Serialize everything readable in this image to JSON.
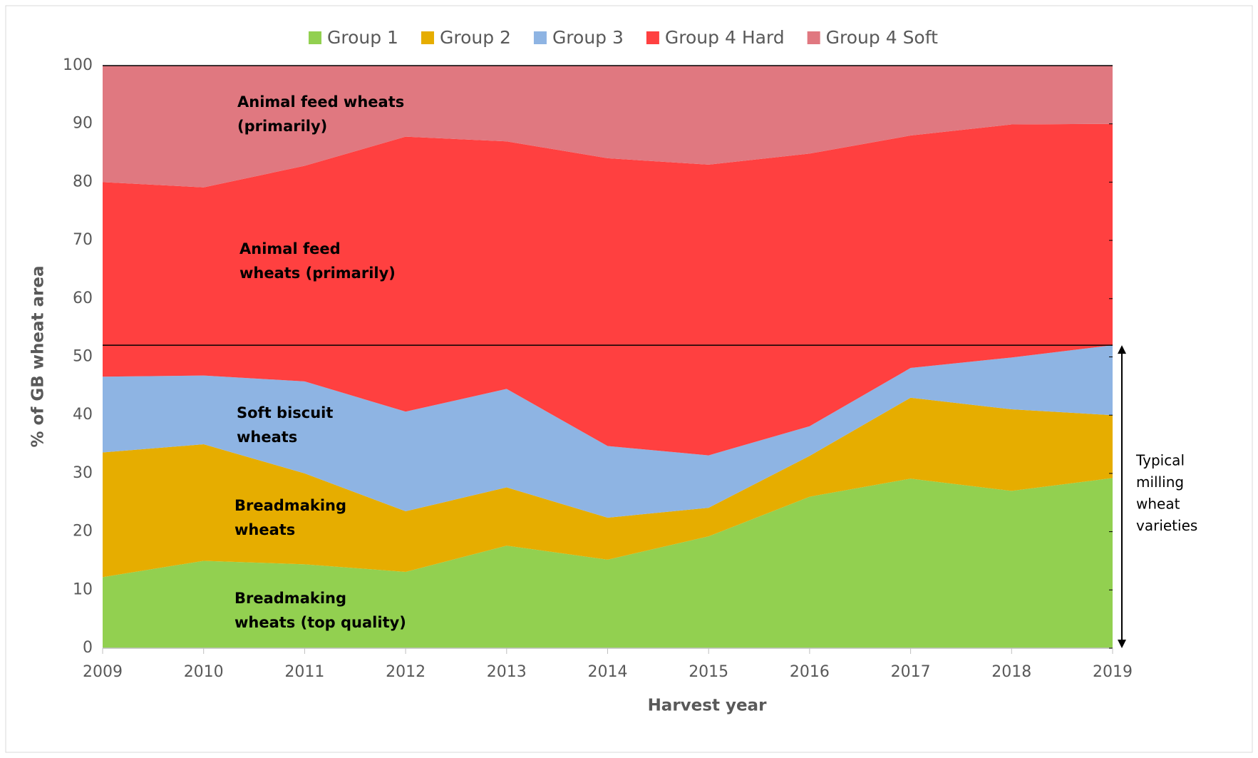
{
  "chart_data": {
    "type": "stacked_area",
    "x": [
      2009,
      2010,
      2011,
      2012,
      2013,
      2014,
      2015,
      2016,
      2017,
      2018,
      2019
    ],
    "xlim": [
      2009,
      2019
    ],
    "xticks": [
      2009,
      2010,
      2011,
      2012,
      2013,
      2014,
      2015,
      2016,
      2017,
      2018,
      2019
    ],
    "ylim": [
      0,
      100
    ],
    "yticks": [
      0,
      10,
      20,
      30,
      40,
      50,
      60,
      70,
      80,
      90,
      100
    ],
    "x_label": "Harvest year",
    "y_label": "% of GB wheat area",
    "legend": "top",
    "series": [
      {
        "name": "Group 1",
        "color": "#92d050",
        "values": [
          12.2,
          15,
          14.4,
          13.1,
          17.6,
          15.2,
          19.2,
          26,
          29.1,
          27,
          29.2
        ]
      },
      {
        "name": "Group 2",
        "color": "#e6ad00",
        "values": [
          21.4,
          20,
          15.6,
          10.4,
          10,
          7.2,
          4.9,
          7,
          13.9,
          14,
          10.8
        ]
      },
      {
        "name": "Group 3",
        "color": "#8eb4e3",
        "values": [
          13,
          11.8,
          15.8,
          17.1,
          16.9,
          12.3,
          9,
          5.1,
          5.1,
          8.9,
          12
        ]
      },
      {
        "name": "Group 4 Hard",
        "color": "#ff4040",
        "values": [
          33.4,
          32.3,
          37,
          47.2,
          42.5,
          49.4,
          49.9,
          46.8,
          39.9,
          40,
          38
        ]
      },
      {
        "name": "Group 4 Soft",
        "color": "#e07880",
        "values": [
          20,
          20.9,
          17.2,
          12.2,
          13,
          15.9,
          17,
          15.1,
          12,
          10.1,
          10
        ]
      }
    ],
    "reference_line": 52,
    "annotations": [
      {
        "lines": [
          "Animal feed wheats",
          "(primarily)"
        ]
      },
      {
        "lines": [
          "Animal feed",
          "wheats (primarily)"
        ]
      },
      {
        "lines": [
          "Soft biscuit",
          "wheats"
        ]
      },
      {
        "lines": [
          "Breadmaking",
          "wheats"
        ]
      },
      {
        "lines": [
          "Breadmaking",
          "wheats (top quality)"
        ]
      }
    ],
    "range_annotation": {
      "lines": [
        "Typical",
        "milling",
        "wheat",
        "varieties"
      ]
    }
  }
}
